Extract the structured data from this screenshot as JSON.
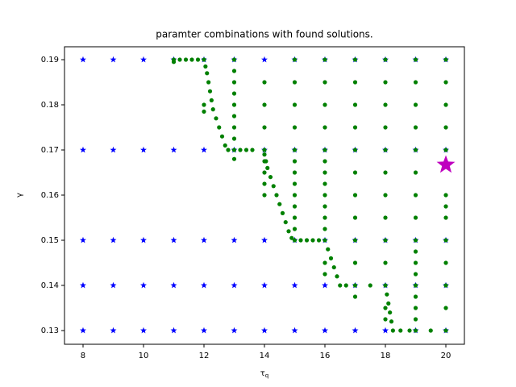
{
  "chart_data": {
    "type": "scatter",
    "title": "paramter combinations with found solutions.",
    "xlabel": {
      "symbol": "τ",
      "subscript": "q"
    },
    "ylabel": "γ",
    "xlim": [
      7.387,
      20.613
    ],
    "ylim": [
      0.12696,
      0.19286
    ],
    "xticks": [
      8,
      10,
      12,
      14,
      16,
      18,
      20
    ],
    "yticks": [
      0.13,
      0.14,
      0.15,
      0.16,
      0.17,
      0.18,
      0.19
    ],
    "series": [
      {
        "color": "#0000ff",
        "marker": "star",
        "x": [
          8,
          9,
          10,
          11,
          12,
          13,
          14,
          15,
          16,
          17,
          18,
          19,
          20
        ],
        "y": [
          0.19,
          0.19,
          0.19,
          0.19,
          0.19,
          0.19,
          0.19,
          0.19,
          0.19,
          0.19,
          0.19,
          0.19,
          0.19
        ]
      },
      {
        "color": "#0000ff",
        "marker": "star",
        "x": [
          8,
          9,
          10,
          11,
          12,
          13,
          14,
          15,
          16,
          17,
          18,
          19,
          20
        ],
        "y": [
          0.17,
          0.17,
          0.17,
          0.17,
          0.17,
          0.17,
          0.17,
          0.17,
          0.17,
          0.17,
          0.17,
          0.17,
          0.17
        ]
      },
      {
        "color": "#0000ff",
        "marker": "star",
        "x": [
          8,
          9,
          10,
          11,
          12,
          13,
          14,
          15,
          16,
          17,
          18,
          19,
          20
        ],
        "y": [
          0.15,
          0.15,
          0.15,
          0.15,
          0.15,
          0.15,
          0.15,
          0.15,
          0.15,
          0.15,
          0.15,
          0.15,
          0.15
        ]
      },
      {
        "color": "#0000ff",
        "marker": "star",
        "x": [
          8,
          9,
          10,
          11,
          12,
          13,
          14,
          15,
          16,
          17,
          18,
          19,
          20
        ],
        "y": [
          0.14,
          0.14,
          0.14,
          0.14,
          0.14,
          0.14,
          0.14,
          0.14,
          0.14,
          0.14,
          0.14,
          0.14,
          0.14
        ]
      },
      {
        "color": "#0000ff",
        "marker": "star",
        "x": [
          8,
          9,
          10,
          11,
          12,
          13,
          14,
          15,
          16,
          17,
          18,
          19,
          20
        ],
        "y": [
          0.13,
          0.13,
          0.13,
          0.13,
          0.13,
          0.13,
          0.13,
          0.13,
          0.13,
          0.13,
          0.13,
          0.13,
          0.13
        ]
      },
      {
        "color": "#008000",
        "marker": "dot",
        "x": [
          11,
          11.2,
          11.4,
          11.6,
          11.8,
          12,
          11,
          12.05,
          12.1,
          12.15,
          12.2,
          12.25,
          12.3,
          12.4,
          12.5,
          12.6,
          12.7,
          12.8,
          13.2,
          13.4,
          13.6,
          14,
          14.05,
          14.1,
          14.2,
          14.3,
          14.4,
          14.5,
          14.6,
          14.7,
          14.8,
          14.9,
          15.2,
          15.4,
          15.6,
          15.8,
          16.1,
          16.2,
          16.3,
          16.4,
          16.5,
          16.7,
          17.5,
          18.05,
          18.1,
          18.15,
          18.2,
          18.25,
          18.5,
          18.8,
          19.5
        ],
        "y": [
          0.19,
          0.19,
          0.19,
          0.19,
          0.19,
          0.19,
          0.1895,
          0.1885,
          0.187,
          0.185,
          0.183,
          0.181,
          0.179,
          0.177,
          0.175,
          0.173,
          0.171,
          0.17,
          0.17,
          0.17,
          0.17,
          0.169,
          0.1675,
          0.166,
          0.164,
          0.162,
          0.16,
          0.158,
          0.156,
          0.154,
          0.152,
          0.1505,
          0.15,
          0.15,
          0.15,
          0.15,
          0.148,
          0.146,
          0.144,
          0.142,
          0.14,
          0.14,
          0.14,
          0.138,
          0.136,
          0.134,
          0.132,
          0.13,
          0.13,
          0.13,
          0.13
        ]
      },
      {
        "color": "#008000",
        "marker": "dot",
        "x": [
          12,
          12
        ],
        "y": [
          0.18,
          0.1785
        ]
      },
      {
        "color": "#008000",
        "marker": "dot",
        "x": [
          13,
          13,
          13,
          13,
          13,
          13,
          13,
          13,
          13,
          13
        ],
        "y": [
          0.19,
          0.1875,
          0.185,
          0.1825,
          0.18,
          0.1775,
          0.175,
          0.1725,
          0.17,
          0.168
        ]
      },
      {
        "color": "#008000",
        "marker": "dot",
        "x": [
          14,
          14,
          14,
          14,
          14,
          14,
          14,
          14
        ],
        "y": [
          0.185,
          0.18,
          0.175,
          0.17,
          0.1675,
          0.165,
          0.1625,
          0.16
        ]
      },
      {
        "color": "#008000",
        "marker": "dot",
        "x": [
          15,
          15,
          15,
          15,
          15,
          15,
          15,
          15,
          15,
          15,
          15,
          15,
          15
        ],
        "y": [
          0.19,
          0.185,
          0.18,
          0.175,
          0.17,
          0.1675,
          0.165,
          0.1625,
          0.16,
          0.1575,
          0.155,
          0.1525,
          0.15
        ]
      },
      {
        "color": "#008000",
        "marker": "dot",
        "x": [
          16,
          16,
          16,
          16,
          16,
          16,
          16,
          16,
          16,
          16,
          16,
          16,
          16,
          16,
          16
        ],
        "y": [
          0.19,
          0.185,
          0.18,
          0.175,
          0.17,
          0.1675,
          0.165,
          0.1625,
          0.16,
          0.1575,
          0.155,
          0.1525,
          0.15,
          0.145,
          0.1425
        ]
      },
      {
        "color": "#008000",
        "marker": "dot",
        "x": [
          17,
          17,
          17,
          17,
          17,
          17,
          17,
          17,
          17,
          17,
          17,
          17
        ],
        "y": [
          0.19,
          0.185,
          0.18,
          0.175,
          0.17,
          0.165,
          0.16,
          0.155,
          0.15,
          0.145,
          0.14,
          0.1375
        ]
      },
      {
        "color": "#008000",
        "marker": "dot",
        "x": [
          18,
          18,
          18,
          18,
          18,
          18,
          18,
          18,
          18,
          18,
          18,
          18,
          18
        ],
        "y": [
          0.19,
          0.185,
          0.18,
          0.175,
          0.17,
          0.165,
          0.16,
          0.155,
          0.15,
          0.145,
          0.14,
          0.135,
          0.1325
        ]
      },
      {
        "color": "#008000",
        "marker": "dot",
        "x": [
          19,
          19,
          19,
          19,
          19,
          19,
          19,
          19,
          19,
          19,
          19,
          19,
          19,
          19,
          19,
          19,
          19
        ],
        "y": [
          0.19,
          0.185,
          0.18,
          0.175,
          0.17,
          0.165,
          0.16,
          0.155,
          0.15,
          0.1475,
          0.145,
          0.1425,
          0.14,
          0.1375,
          0.135,
          0.1325,
          0.13
        ]
      },
      {
        "color": "#008000",
        "marker": "dot",
        "x": [
          20,
          20,
          20,
          20,
          20,
          20,
          20,
          20,
          20,
          20,
          20,
          20,
          20
        ],
        "y": [
          0.19,
          0.185,
          0.18,
          0.175,
          0.17,
          0.16,
          0.1575,
          0.155,
          0.15,
          0.145,
          0.14,
          0.135,
          0.13
        ]
      },
      {
        "color": "#bf00bf",
        "marker": "bigstar",
        "x": [
          20
        ],
        "y": [
          0.1667
        ]
      }
    ]
  }
}
